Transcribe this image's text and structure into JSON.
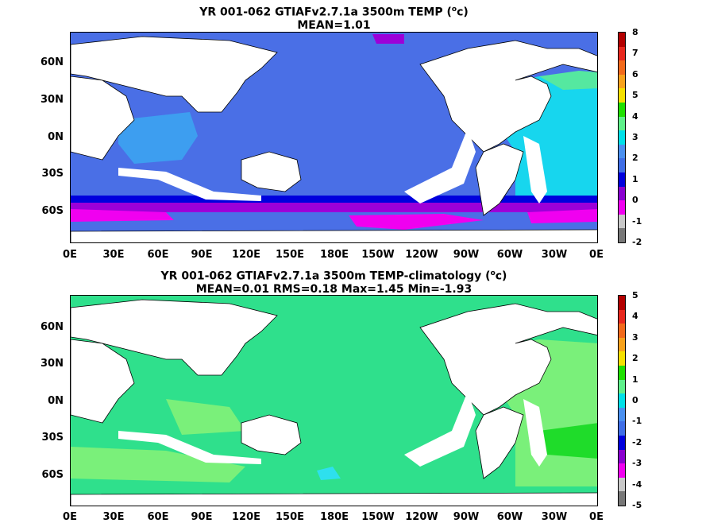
{
  "panels": [
    {
      "title_line1": "YR 001-062 GTIAFv2.7.1a 3500m TEMP (",
      "title_sup": "o",
      "title_tail": "c)",
      "title_line2": "MEAN=1.01",
      "colorbar": {
        "labels": [
          "8",
          "7",
          "6",
          "5",
          "4",
          "3",
          "2",
          "1",
          "0",
          "-1",
          "-2"
        ],
        "colors": [
          "#b30000",
          "#e8281e",
          "#f26a1b",
          "#f7a21c",
          "#f4e000",
          "#1fe000",
          "#5ef08a",
          "#00e0e8",
          "#4a90f0",
          "#3f6ee6",
          "#0000dd",
          "#8a00d0",
          "#f000f0",
          "#c8c8c8",
          "#787878"
        ]
      }
    },
    {
      "title_line1": "YR 001-062 GTIAFv2.7.1a 3500m TEMP-climatology (",
      "title_sup": "o",
      "title_tail": "c)",
      "title_line2": "MEAN=0.01   RMS=0.18   Max=1.45   Min=-1.93",
      "colorbar": {
        "labels": [
          "5",
          "4",
          "3",
          "2",
          "1",
          "0",
          "-1",
          "-2",
          "-3",
          "-4",
          "-5"
        ],
        "colors": [
          "#b30000",
          "#e8281e",
          "#f26a1b",
          "#f7a21c",
          "#f4e000",
          "#1fe000",
          "#5ef08a",
          "#00e0e8",
          "#4a90f0",
          "#3f6ee6",
          "#0000dd",
          "#8a00d0",
          "#f000f0",
          "#c8c8c8",
          "#787878"
        ]
      }
    }
  ],
  "lat_labels": [
    "60N",
    "30N",
    "0N",
    "30S",
    "60S"
  ],
  "lon_labels": [
    "0E",
    "30E",
    "60E",
    "90E",
    "120E",
    "150E",
    "180E",
    "150W",
    "120W",
    "90W",
    "60W",
    "30W",
    "0E"
  ],
  "map_colors": {
    "land": "#ffffff",
    "top_main": "#4a6fe6",
    "top_light": "#3d9ef0",
    "top_cyan": "#17d6ee",
    "top_green": "#55e8a0",
    "top_deepblue": "#0000dd",
    "top_purple": "#9c00d8",
    "top_magenta": "#f000f0",
    "bot_main": "#2fe08c",
    "bot_light": "#7af07a",
    "bot_green": "#1fdc2a",
    "bot_cyan": "#2ee0ee"
  }
}
